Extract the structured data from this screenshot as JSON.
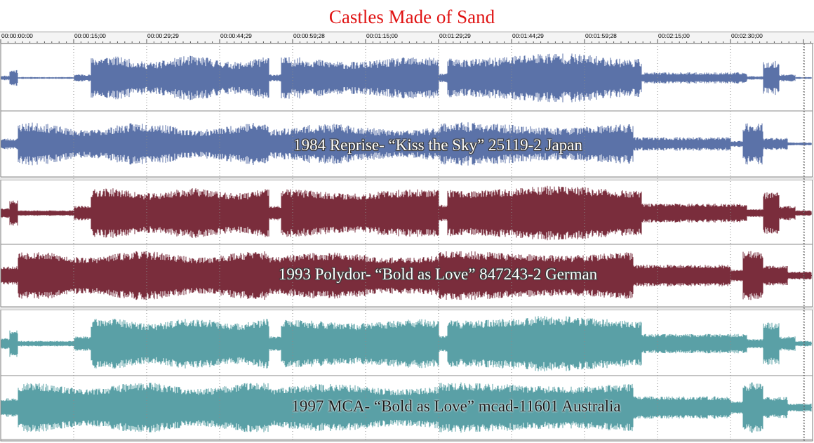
{
  "title": "Castles Made of Sand",
  "timeline": {
    "ticks": [
      "00:00:00:00",
      "00:00:15;00",
      "00:00:29;29",
      "00:00:44;29",
      "00:00:59;28",
      "00:01:15;00",
      "00:01:29;29",
      "00:01:44;29",
      "00:01:59;28",
      "00:02:15;00",
      "00:02:30;00"
    ]
  },
  "clips": [
    {
      "label": "1984 Reprise- “Kiss the Sky” 25119-2 Japan",
      "color": "#5b72a8"
    },
    {
      "label": "1993 Polydor- “Bold as Love” 847243-2 German",
      "color": "#7a2d3c"
    },
    {
      "label": "1997 MCA- “Bold as Love” mcad-11601 Australia",
      "color": "#5aa0a6"
    }
  ],
  "colors": {
    "title": "#e01414",
    "grid": "#8a8a8a",
    "background": "#ffffff"
  }
}
